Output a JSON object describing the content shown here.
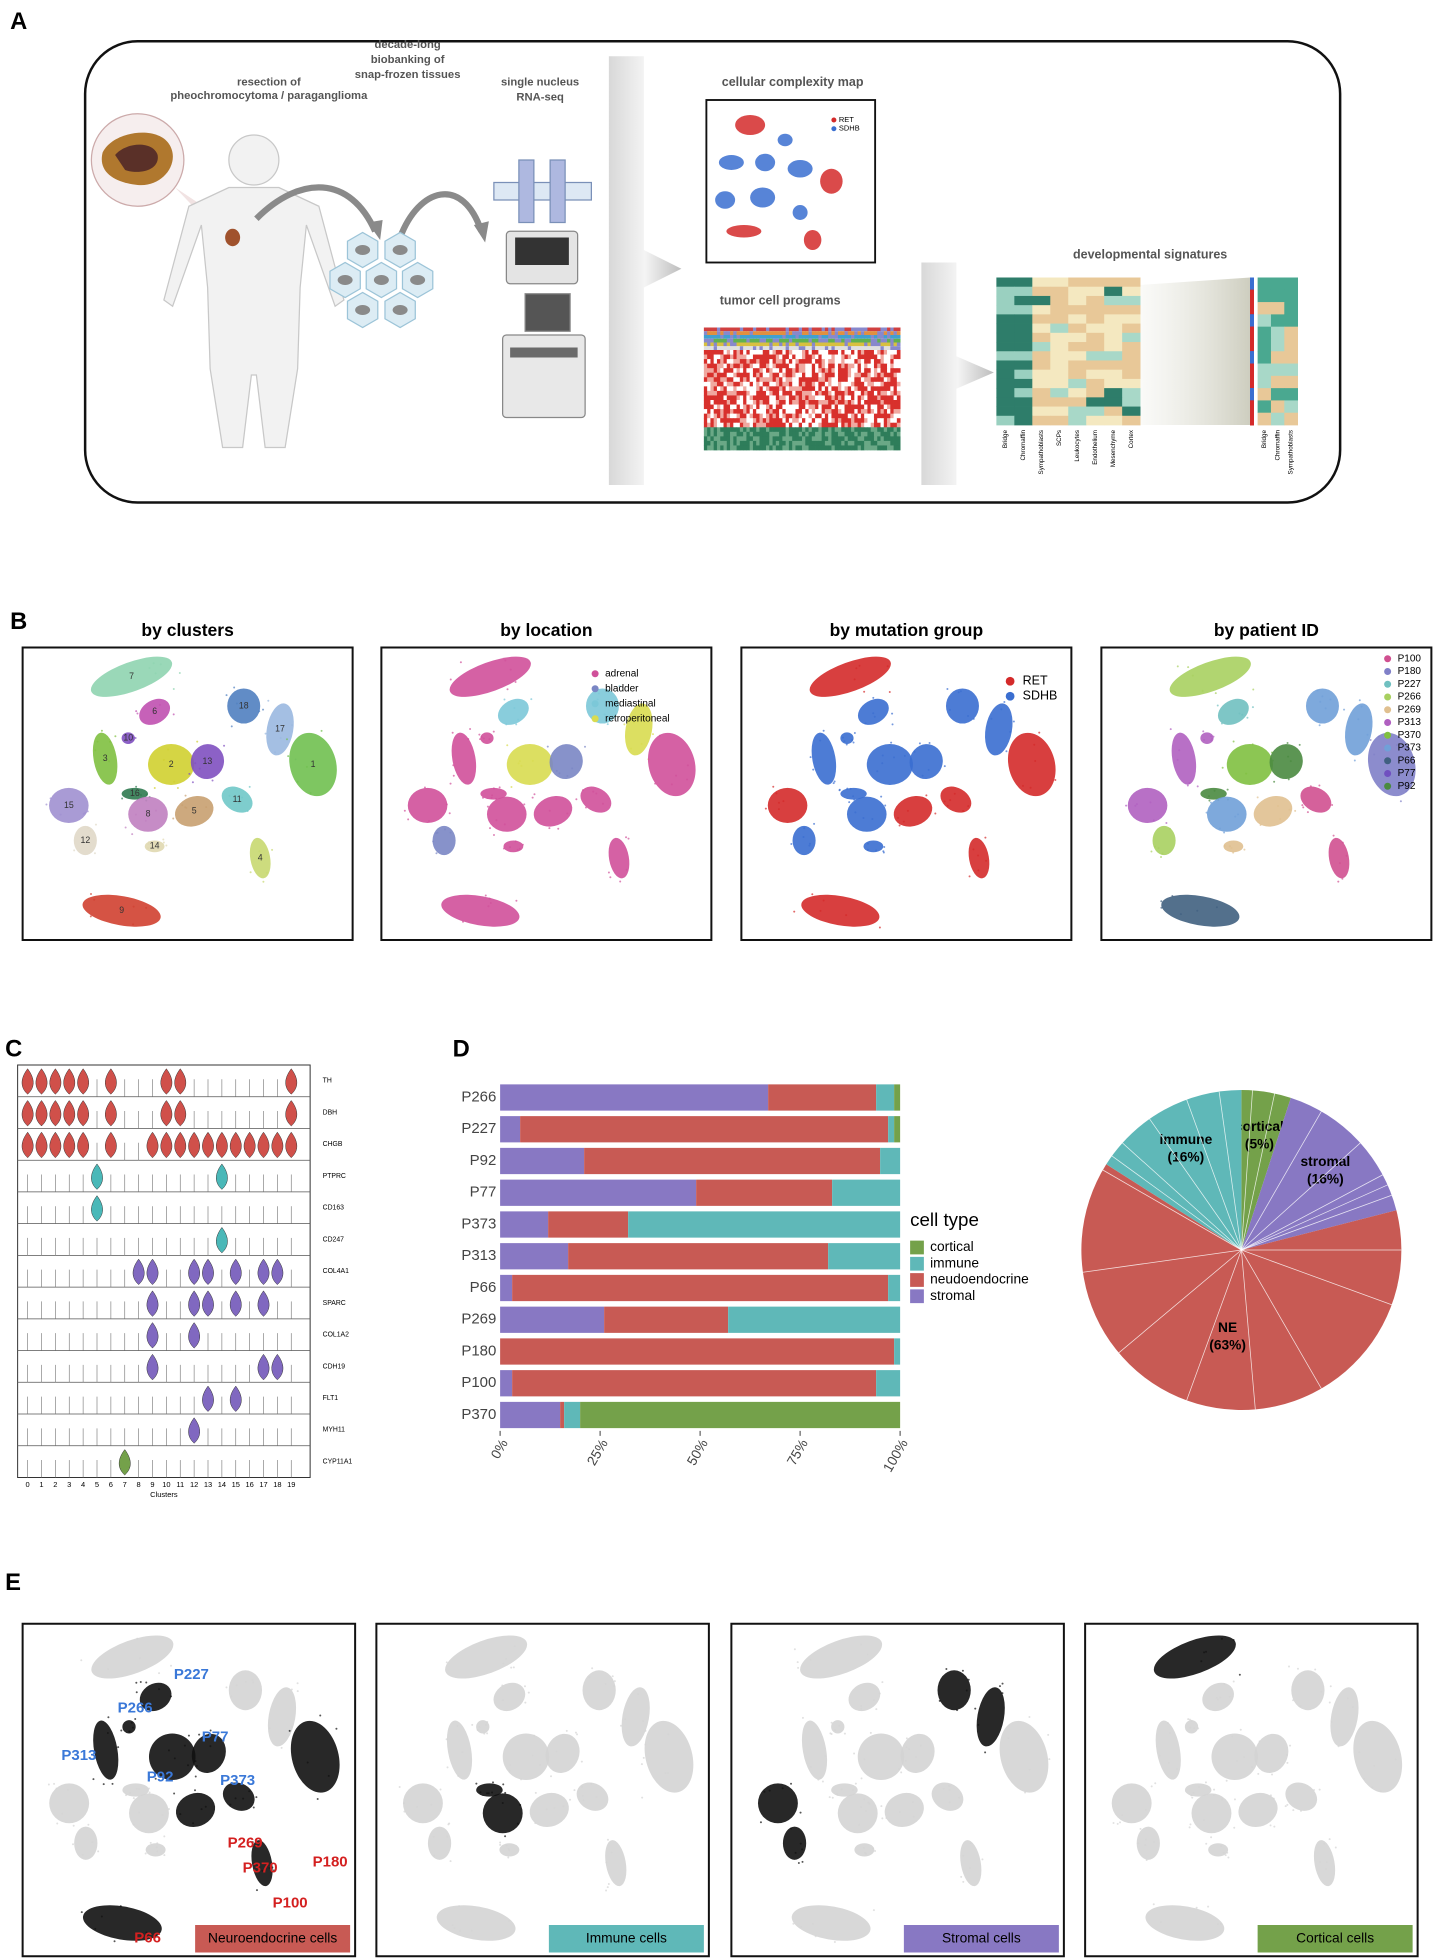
{
  "panel_labels": [
    "A",
    "B",
    "C",
    "D",
    "E"
  ],
  "panel_a": {
    "resection": [
      "resection of",
      "pheochromocytoma / paraganglioma"
    ],
    "biobanking": [
      "decade-long",
      "biobanking of",
      "snap-frozen tissues"
    ],
    "sequencing": [
      "single nucleus",
      "RNA-seq"
    ],
    "map_title": "cellular complexity map",
    "map_legend": [
      "RET",
      "SDHB"
    ],
    "programs_title": "tumor cell programs",
    "signatures_title": "developmental signatures",
    "signature_columns": [
      "Bridge",
      "Chromaffin",
      "Sympathoblasts",
      "SCPs",
      "Leukocytes",
      "Endothelium",
      "Mesenchyme",
      "Cortex"
    ],
    "small_columns": [
      "Bridge",
      "Chromaffin",
      "Sympathoblasts"
    ]
  },
  "panel_b": {
    "titles": [
      "by clusters",
      "by location",
      "by mutation group",
      "by patient ID"
    ],
    "cluster_labels": [
      "7",
      "6",
      "18",
      "17",
      "10",
      "3",
      "2",
      "13",
      "1",
      "16",
      "11",
      "8",
      "5",
      "15",
      "12",
      "14",
      "4",
      "9"
    ],
    "location_legend": [
      {
        "name": "adrenal",
        "color": "#d0509a"
      },
      {
        "name": "bladder",
        "color": "#7a86c4"
      },
      {
        "name": "mediastinal",
        "color": "#7cc8d8"
      },
      {
        "name": "retroperitoneal",
        "color": "#d8dc50"
      }
    ],
    "mutation_legend": [
      {
        "name": "RET",
        "color": "#d42a2a"
      },
      {
        "name": "SDHB",
        "color": "#3a6ed0"
      }
    ],
    "patient_legend": [
      {
        "name": "P100",
        "color": "#d05090"
      },
      {
        "name": "P180",
        "color": "#8080c8"
      },
      {
        "name": "P227",
        "color": "#70c0c0"
      },
      {
        "name": "P266",
        "color": "#a8d060"
      },
      {
        "name": "P269",
        "color": "#e0c090"
      },
      {
        "name": "P313",
        "color": "#b060c0"
      },
      {
        "name": "P370",
        "color": "#80c040"
      },
      {
        "name": "P373",
        "color": "#70a0d8"
      },
      {
        "name": "P66",
        "color": "#406080"
      },
      {
        "name": "P77",
        "color": "#7050c0"
      },
      {
        "name": "P92",
        "color": "#4a8a40"
      }
    ]
  },
  "panel_c": {
    "genes": [
      "TH",
      "DBH",
      "CHGB",
      "PTPRC",
      "CD163",
      "CD247",
      "COL4A1",
      "SPARC",
      "COL1A2",
      "CDH19",
      "FLT1",
      "MYH11",
      "CYP11A1"
    ],
    "clusters": [
      "0",
      "1",
      "2",
      "3",
      "4",
      "5",
      "6",
      "7",
      "8",
      "9",
      "10",
      "11",
      "12",
      "13",
      "14",
      "15",
      "16",
      "17",
      "18",
      "19"
    ],
    "axis_label": "Clusters"
  },
  "panel_e": {
    "patients": [
      {
        "label": "P227",
        "color": "#3a78d8"
      },
      {
        "label": "P266",
        "color": "#3a78d8"
      },
      {
        "label": "P313",
        "color": "#3a78d8"
      },
      {
        "label": "P77",
        "color": "#3a78d8"
      },
      {
        "label": "P92",
        "color": "#3a78d8"
      },
      {
        "label": "P373",
        "color": "#3a78d8"
      },
      {
        "label": "P269",
        "color": "#d42020"
      },
      {
        "label": "P370",
        "color": "#d42020"
      },
      {
        "label": "P180",
        "color": "#d42020"
      },
      {
        "label": "P100",
        "color": "#d42020"
      },
      {
        "label": "P66",
        "color": "#d42020"
      }
    ],
    "cells": [
      {
        "label": "Neuroendocrine cells",
        "color": "#c85a54"
      },
      {
        "label": "Immune cells",
        "color": "#5fb8b8"
      },
      {
        "label": "Stromal cells",
        "color": "#8878c3"
      },
      {
        "label": "Cortical cells",
        "color": "#74a14a"
      }
    ]
  },
  "chart_data": [
    {
      "type": "bar",
      "orientation": "horizontal",
      "stacked": true,
      "categories": [
        "P266",
        "P227",
        "P92",
        "P77",
        "P373",
        "P313",
        "P66",
        "P269",
        "P180",
        "P100",
        "P370"
      ],
      "series": [
        {
          "name": "stromal",
          "color": "#8878c3",
          "values": [
            67,
            5,
            21,
            49,
            12,
            17,
            3,
            26,
            0,
            3,
            15
          ]
        },
        {
          "name": "neudoendocrine",
          "color": "#c85a54",
          "values": [
            27,
            92,
            74,
            34,
            20,
            65,
            94,
            31,
            98.5,
            91,
            1
          ]
        },
        {
          "name": "immune",
          "color": "#5fb8b8",
          "values": [
            4.5,
            1.5,
            5,
            17,
            68,
            18,
            3,
            43,
            1.5,
            6,
            4
          ]
        },
        {
          "name": "cortical",
          "color": "#74a14a",
          "values": [
            1.5,
            1.5,
            0,
            0,
            0,
            0,
            0,
            0,
            0,
            0,
            80
          ]
        }
      ],
      "xlim": [
        0,
        100
      ],
      "xticks": [
        {
          "value": 0,
          "label": "0%"
        },
        {
          "value": 25,
          "label": "25%"
        },
        {
          "value": 50,
          "label": "50%"
        },
        {
          "value": 75,
          "label": "75%"
        },
        {
          "value": 100,
          "label": "100%"
        }
      ],
      "legend_title": "cell type"
    },
    {
      "type": "pie",
      "categories": [
        "cortical",
        "stromal",
        "NE",
        "immune"
      ],
      "values": [
        5,
        16,
        63,
        16
      ],
      "value_labels": [
        "(5%)",
        "(16%)",
        "(63%)",
        "(16%)"
      ],
      "colors": [
        "#74a14a",
        "#8878c3",
        "#c85a54",
        "#5fb8b8"
      ]
    }
  ]
}
